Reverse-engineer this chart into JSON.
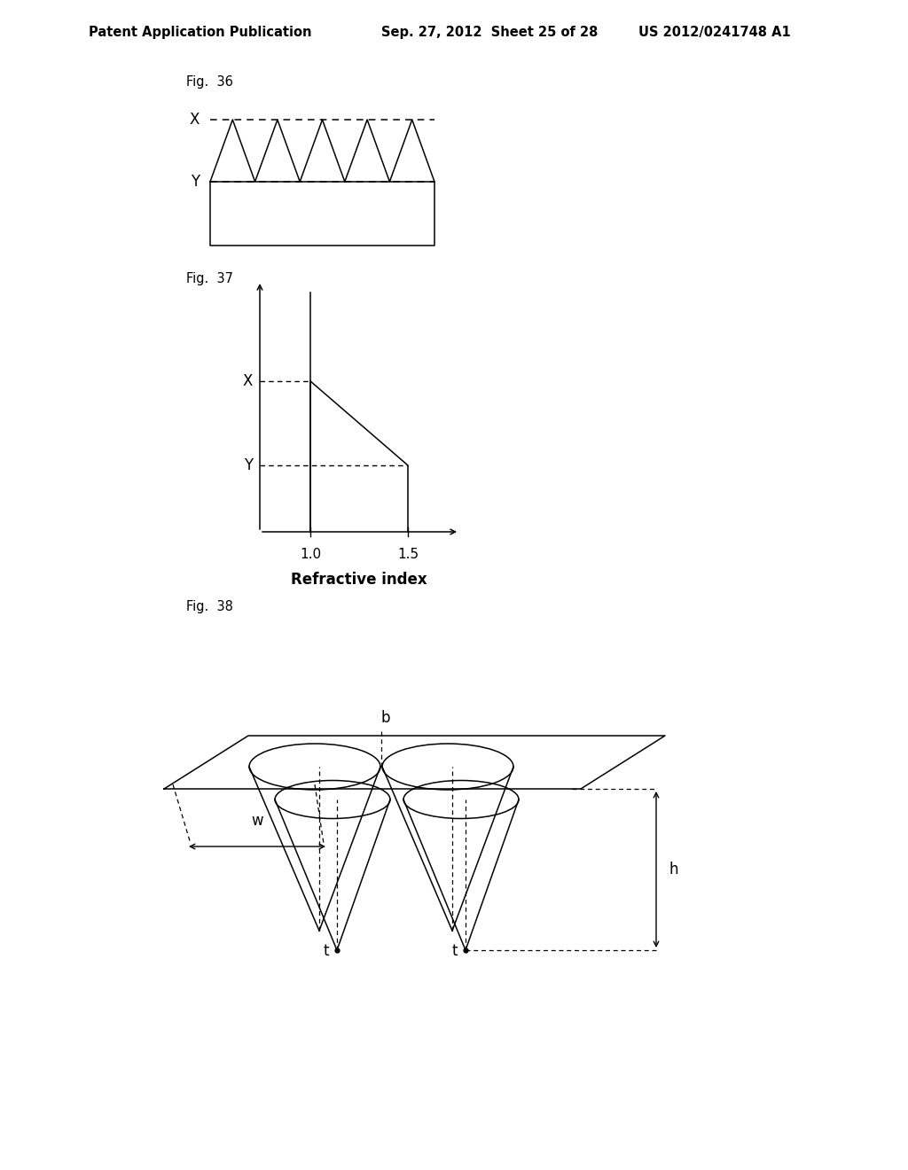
{
  "page_header_left": "Patent Application Publication",
  "page_header_mid": "Sep. 27, 2012  Sheet 25 of 28",
  "page_header_right": "US 2012/0241748 A1",
  "fig36_label": "Fig.  36",
  "fig37_label": "Fig.  37",
  "fig38_label": "Fig.  38",
  "bg_color": "#ffffff",
  "line_color": "#000000",
  "header_fontsize": 10.5,
  "figlabel_fontsize": 10.5
}
